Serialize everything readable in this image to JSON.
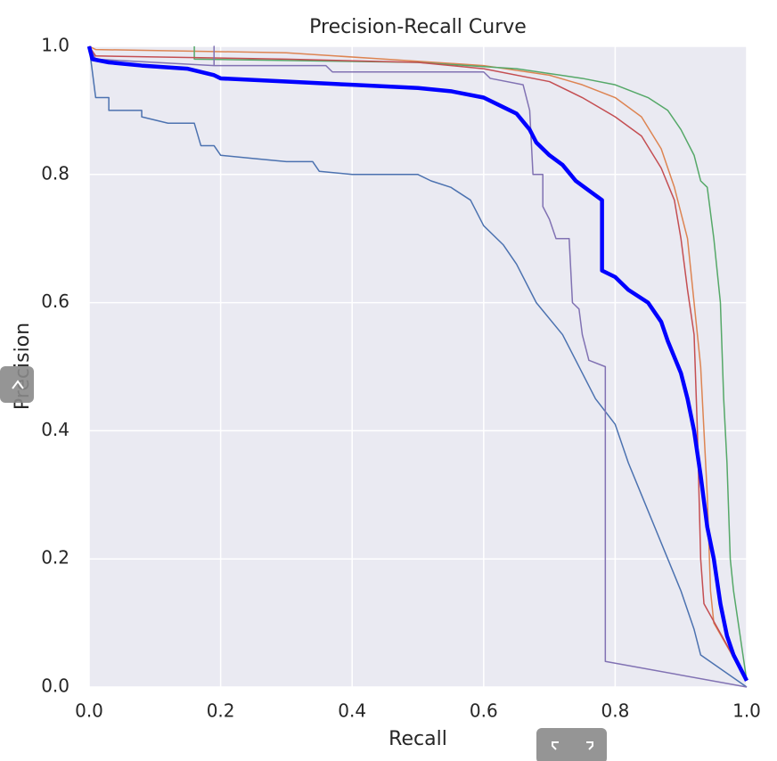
{
  "chart_data": {
    "type": "line",
    "title": "Precision-Recall Curve",
    "x_label": "Recall",
    "y_label": "Precision",
    "xlim": [
      0.0,
      1.0
    ],
    "ylim": [
      0.0,
      1.0
    ],
    "xticks": [
      {
        "value": 0,
        "label": "0.0"
      },
      {
        "value": 0.2,
        "label": "0.2"
      },
      {
        "value": 0.4,
        "label": "0.4"
      },
      {
        "value": 0.6,
        "label": "0.6"
      },
      {
        "value": 0.8,
        "label": "0.8"
      },
      {
        "value": 1,
        "label": "1.0"
      }
    ],
    "yticks": [
      {
        "value": 0,
        "label": "0.0"
      },
      {
        "value": 0.2,
        "label": "0.2"
      },
      {
        "value": 0.4,
        "label": "0.4"
      },
      {
        "value": 0.6,
        "label": "0.6"
      },
      {
        "value": 0.8,
        "label": "0.8"
      },
      {
        "value": 1,
        "label": "1.0"
      }
    ],
    "grid": true,
    "background": "#eaeaf2",
    "series": [
      {
        "color": "#4c72b0",
        "width": 1.5,
        "x": [
          0,
          0.01,
          0.03,
          0.03,
          0.08,
          0.08,
          0.12,
          0.16,
          0.17,
          0.19,
          0.2,
          0.25,
          0.3,
          0.34,
          0.35,
          0.4,
          0.5,
          0.52,
          0.55,
          0.58,
          0.6,
          0.63,
          0.65,
          0.68,
          0.72,
          0.77,
          0.8,
          0.82,
          0.84,
          0.86,
          0.88,
          0.9,
          0.92,
          0.93,
          1.0
        ],
        "values": [
          1.0,
          0.92,
          0.92,
          0.9,
          0.9,
          0.89,
          0.88,
          0.88,
          0.845,
          0.845,
          0.83,
          0.825,
          0.82,
          0.82,
          0.805,
          0.8,
          0.8,
          0.79,
          0.78,
          0.76,
          0.72,
          0.69,
          0.66,
          0.6,
          0.55,
          0.45,
          0.41,
          0.35,
          0.3,
          0.25,
          0.2,
          0.15,
          0.09,
          0.05,
          0.0
        ]
      },
      {
        "color": "#dd8452",
        "width": 1.5,
        "x": [
          0,
          0.01,
          0.3,
          0.45,
          0.6,
          0.7,
          0.75,
          0.8,
          0.84,
          0.87,
          0.89,
          0.91,
          0.92,
          0.93,
          0.94,
          0.945,
          0.95,
          1.0
        ],
        "values": [
          1.0,
          0.995,
          0.99,
          0.98,
          0.97,
          0.955,
          0.94,
          0.92,
          0.89,
          0.84,
          0.78,
          0.7,
          0.6,
          0.5,
          0.3,
          0.15,
          0.1,
          0.01
        ]
      },
      {
        "color": "#55a868",
        "width": 1.5,
        "x": [
          0.16,
          0.16,
          0.5,
          0.65,
          0.75,
          0.8,
          0.85,
          0.88,
          0.9,
          0.92,
          0.93,
          0.94,
          0.95,
          0.96,
          0.965,
          0.97,
          0.975,
          0.98,
          1.0
        ],
        "values": [
          1.0,
          0.98,
          0.975,
          0.965,
          0.95,
          0.94,
          0.92,
          0.9,
          0.87,
          0.83,
          0.79,
          0.78,
          0.7,
          0.6,
          0.45,
          0.35,
          0.2,
          0.15,
          0.01
        ]
      },
      {
        "color": "#c44e52",
        "width": 1.5,
        "x": [
          0,
          0.01,
          0.3,
          0.5,
          0.6,
          0.7,
          0.75,
          0.8,
          0.84,
          0.87,
          0.89,
          0.9,
          0.91,
          0.92,
          0.925,
          0.93,
          0.935,
          1.0
        ],
        "values": [
          1.0,
          0.985,
          0.98,
          0.975,
          0.965,
          0.945,
          0.92,
          0.89,
          0.86,
          0.81,
          0.76,
          0.7,
          0.62,
          0.55,
          0.4,
          0.2,
          0.13,
          0.01
        ]
      },
      {
        "color": "#8172b3",
        "width": 1.5,
        "x": [
          0,
          0.01,
          0.19,
          0.19,
          0.19,
          0.36,
          0.37,
          0.6,
          0.61,
          0.66,
          0.67,
          0.675,
          0.69,
          0.69,
          0.7,
          0.71,
          0.73,
          0.735,
          0.745,
          0.75,
          0.76,
          0.785,
          0.785,
          1.0
        ],
        "values": [
          1.0,
          0.98,
          0.97,
          1.0,
          0.97,
          0.97,
          0.96,
          0.96,
          0.95,
          0.94,
          0.9,
          0.8,
          0.8,
          0.75,
          0.73,
          0.7,
          0.7,
          0.6,
          0.59,
          0.55,
          0.51,
          0.5,
          0.04,
          0.0
        ]
      },
      {
        "color": "#0000ff",
        "width": 4.5,
        "x": [
          0,
          0.005,
          0.03,
          0.08,
          0.15,
          0.19,
          0.2,
          0.3,
          0.4,
          0.5,
          0.55,
          0.6,
          0.63,
          0.65,
          0.67,
          0.68,
          0.7,
          0.72,
          0.74,
          0.76,
          0.78,
          0.78,
          0.8,
          0.82,
          0.85,
          0.87,
          0.88,
          0.9,
          0.91,
          0.92,
          0.93,
          0.94,
          0.95,
          0.96,
          0.97,
          0.98,
          0.99,
          1.0
        ],
        "values": [
          1.0,
          0.98,
          0.975,
          0.97,
          0.965,
          0.955,
          0.95,
          0.945,
          0.94,
          0.935,
          0.93,
          0.92,
          0.905,
          0.895,
          0.87,
          0.85,
          0.83,
          0.815,
          0.79,
          0.775,
          0.76,
          0.65,
          0.64,
          0.62,
          0.6,
          0.57,
          0.54,
          0.49,
          0.45,
          0.4,
          0.33,
          0.25,
          0.2,
          0.13,
          0.08,
          0.05,
          0.03,
          0.01
        ]
      }
    ]
  }
}
